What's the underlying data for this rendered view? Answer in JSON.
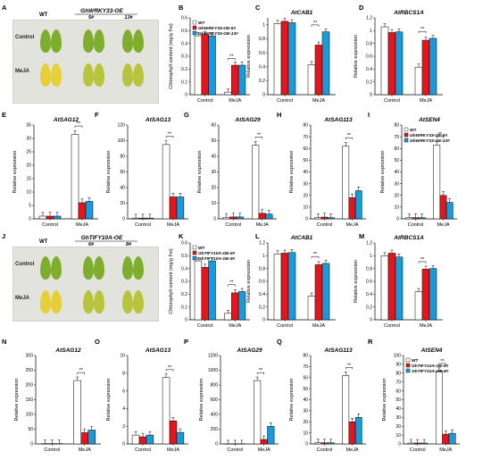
{
  "colors": {
    "wt": "#ffffff",
    "line1": "#e8141b",
    "line2": "#1a9ad9",
    "axis": "#000000",
    "leaf_green": "#7fae2e",
    "leaf_yellow": "#e7cf3a"
  },
  "photos": [
    {
      "letter": "A",
      "title_left": "WT",
      "title_right": "GhWRKY33-OE",
      "sub": [
        "5#",
        "13#"
      ],
      "rows": [
        "Control",
        "MeJA"
      ]
    },
    {
      "letter": "J",
      "title_left": "WT",
      "title_right": "GhTIFY10A-OE",
      "sub": [
        "6#",
        "8#"
      ],
      "rows": [
        "Control",
        "MeJA"
      ]
    }
  ],
  "chart_data": [
    {
      "panel": "B",
      "type": "bar",
      "title": "",
      "ylabel": "Chlorophyll content (mg/g Fw)",
      "categories": [
        "Control",
        "MeJA"
      ],
      "ylim": [
        0,
        0.6
      ],
      "ticks": [
        0,
        0.1,
        0.2,
        0.3,
        0.4,
        0.5,
        0.6
      ],
      "legend": [
        "WT",
        "GhWRKY33-OE-5#",
        "GhWRKY33-OE-13#"
      ],
      "legend_position": "top-left",
      "series": [
        {
          "name": "WT",
          "values": [
            0.46,
            0.02
          ]
        },
        {
          "name": "GhWRKY33-OE-5#",
          "values": [
            0.47,
            0.23
          ]
        },
        {
          "name": "GhWRKY33-OE-13#",
          "values": [
            0.46,
            0.23
          ]
        }
      ],
      "sig": [
        {
          "cat": 1,
          "label": "**"
        }
      ]
    },
    {
      "panel": "C",
      "type": "bar",
      "title": "AtCAB1",
      "ylabel": "Relative expression",
      "categories": [
        "Control",
        "MeJA"
      ],
      "ylim": [
        0,
        1.1
      ],
      "ticks": [
        0,
        0.2,
        0.4,
        0.6,
        0.8,
        1
      ],
      "series": [
        {
          "name": "WT",
          "values": [
            1.02,
            0.43
          ]
        },
        {
          "name": "GhWRKY33-OE-5#",
          "values": [
            1.05,
            0.71
          ]
        },
        {
          "name": "GhWRKY33-OE-13#",
          "values": [
            1.03,
            0.9
          ]
        }
      ],
      "sig": [
        {
          "cat": 1,
          "label": "**"
        }
      ]
    },
    {
      "panel": "D",
      "type": "bar",
      "title": "AtRBCS1A",
      "ylabel": "Relative expression",
      "categories": [
        "Control",
        "MeJA"
      ],
      "ylim": [
        0,
        1.2
      ],
      "ticks": [
        0,
        0.2,
        0.4,
        0.6,
        0.8,
        1,
        1.2
      ],
      "series": [
        {
          "name": "WT",
          "values": [
            1.06,
            0.43
          ]
        },
        {
          "name": "GhWRKY33-OE-5#",
          "values": [
            0.97,
            0.85
          ]
        },
        {
          "name": "GhWRKY33-OE-13#",
          "values": [
            0.98,
            0.88
          ]
        }
      ],
      "sig": [
        {
          "cat": 1,
          "label": "**"
        }
      ]
    },
    {
      "panel": "E",
      "type": "bar",
      "title": "AtSAG12",
      "ylabel": "Relative expression",
      "categories": [
        "Control",
        "MeJA"
      ],
      "ylim": [
        0,
        35
      ],
      "ticks": [
        0,
        5,
        10,
        15,
        20,
        25,
        30,
        35
      ],
      "series": [
        {
          "name": "WT",
          "values": [
            1,
            31.5
          ]
        },
        {
          "name": "GhWRKY33-OE-5#",
          "values": [
            1,
            6
          ]
        },
        {
          "name": "GhWRKY33-OE-13#",
          "values": [
            1,
            6.5
          ]
        }
      ],
      "sig": [
        {
          "cat": 1,
          "label": "**"
        }
      ]
    },
    {
      "panel": "F",
      "type": "bar",
      "title": "AtSAG13",
      "ylabel": "Relative expression",
      "categories": [
        "Control",
        "MeJA"
      ],
      "ylim": [
        0,
        120
      ],
      "ticks": [
        0,
        20,
        40,
        60,
        80,
        100,
        120
      ],
      "series": [
        {
          "name": "WT",
          "values": [
            1,
            95
          ]
        },
        {
          "name": "GhWRKY33-OE-5#",
          "values": [
            1,
            28
          ]
        },
        {
          "name": "GhWRKY33-OE-13#",
          "values": [
            1,
            28
          ]
        }
      ],
      "sig": [
        {
          "cat": 1,
          "label": "**"
        }
      ]
    },
    {
      "panel": "G",
      "type": "bar",
      "title": "AtSAG29",
      "ylabel": "Relative expression",
      "categories": [
        "Control",
        "MeJA"
      ],
      "ylim": [
        0,
        60
      ],
      "ticks": [
        0,
        10,
        20,
        30,
        40,
        50,
        60
      ],
      "series": [
        {
          "name": "WT",
          "values": [
            1,
            47
          ]
        },
        {
          "name": "GhWRKY33-OE-5#",
          "values": [
            1.2,
            3.5
          ]
        },
        {
          "name": "GhWRKY33-OE-13#",
          "values": [
            1.2,
            3
          ]
        }
      ],
      "sig": [
        {
          "cat": 1,
          "label": "**"
        }
      ]
    },
    {
      "panel": "H",
      "type": "bar",
      "title": "AtSAG113",
      "ylabel": "Relative expression",
      "categories": [
        "Control",
        "MeJA"
      ],
      "ylim": [
        0,
        80
      ],
      "ticks": [
        0,
        10,
        20,
        30,
        40,
        50,
        60,
        70,
        80
      ],
      "series": [
        {
          "name": "WT",
          "values": [
            1,
            62
          ]
        },
        {
          "name": "GhWRKY33-OE-5#",
          "values": [
            1.5,
            18
          ]
        },
        {
          "name": "GhWRKY33-OE-13#",
          "values": [
            1,
            24
          ]
        }
      ],
      "sig": [
        {
          "cat": 1,
          "label": "**"
        }
      ]
    },
    {
      "panel": "I",
      "type": "bar",
      "title": "AtSEN4",
      "ylabel": "Relative expression",
      "categories": [
        "Control",
        "MeJA"
      ],
      "ylim": [
        0,
        80
      ],
      "ticks": [
        0,
        10,
        20,
        30,
        40,
        50,
        60,
        70,
        80
      ],
      "legend": [
        "WT",
        "GhWRKY33-OE-5#",
        "GhWRKY33-OE-13#"
      ],
      "legend_position": "top-left",
      "series": [
        {
          "name": "WT",
          "values": [
            1,
            63
          ]
        },
        {
          "name": "GhWRKY33-OE-5#",
          "values": [
            1,
            20
          ]
        },
        {
          "name": "GhWRKY33-OE-13#",
          "values": [
            1,
            14
          ]
        }
      ],
      "sig": [
        {
          "cat": 1,
          "label": "**"
        }
      ]
    },
    {
      "panel": "K",
      "type": "bar",
      "title": "",
      "ylabel": "Chlorophyll content (mg/g Fw)",
      "categories": [
        "Control",
        "MeJA"
      ],
      "ylim": [
        0,
        0.6
      ],
      "ticks": [
        0,
        0.1,
        0.2,
        0.3,
        0.4,
        0.5,
        0.6
      ],
      "legend": [
        "WT",
        "GhTIFY10A-OE-6#",
        "GhTIFY10A-OE-8#"
      ],
      "legend_position": "top-left",
      "series": [
        {
          "name": "WT",
          "values": [
            0.46,
            0.05
          ]
        },
        {
          "name": "GhTIFY10A-OE-6#",
          "values": [
            0.41,
            0.21
          ]
        },
        {
          "name": "GhTIFY10A-OE-8#",
          "values": [
            0.46,
            0.22
          ]
        }
      ],
      "sig": [
        {
          "cat": 1,
          "label": "**"
        }
      ]
    },
    {
      "panel": "L",
      "type": "bar",
      "title": "AtCAB1",
      "ylabel": "Relative expression",
      "categories": [
        "Control",
        "MeJA"
      ],
      "ylim": [
        0,
        1.2
      ],
      "ticks": [
        0,
        0.2,
        0.4,
        0.6,
        0.8,
        1,
        1.2
      ],
      "series": [
        {
          "name": "WT",
          "values": [
            1.03,
            0.37
          ]
        },
        {
          "name": "GhTIFY10A-OE-6#",
          "values": [
            1.04,
            0.86
          ]
        },
        {
          "name": "GhTIFY10A-OE-8#",
          "values": [
            1.05,
            0.88
          ]
        }
      ],
      "sig": [
        {
          "cat": 1,
          "label": "**"
        }
      ]
    },
    {
      "panel": "M",
      "type": "bar",
      "title": "AtRBCS1A",
      "ylabel": "Relative expression",
      "categories": [
        "Control",
        "MeJA"
      ],
      "ylim": [
        0,
        1.2
      ],
      "ticks": [
        0,
        0.2,
        0.4,
        0.6,
        0.8,
        1,
        1.2
      ],
      "series": [
        {
          "name": "WT",
          "values": [
            1,
            0.44
          ]
        },
        {
          "name": "GhTIFY10A-OE-6#",
          "values": [
            1.04,
            0.79
          ]
        },
        {
          "name": "GhTIFY10A-OE-8#",
          "values": [
            0.98,
            0.8
          ]
        }
      ],
      "sig": [
        {
          "cat": 1,
          "label": "**"
        }
      ]
    },
    {
      "panel": "N",
      "type": "bar",
      "title": "AtSAG12",
      "ylabel": "Relative expression",
      "categories": [
        "Control",
        "MeJA"
      ],
      "ylim": [
        0,
        300
      ],
      "ticks": [
        0,
        50,
        100,
        150,
        200,
        250,
        300
      ],
      "series": [
        {
          "name": "WT",
          "values": [
            1,
            215
          ]
        },
        {
          "name": "GhTIFY10A-OE-6#",
          "values": [
            1,
            38
          ]
        },
        {
          "name": "GhTIFY10A-OE-8#",
          "values": [
            1,
            47
          ]
        }
      ],
      "sig": [
        {
          "cat": 1,
          "label": "**"
        }
      ]
    },
    {
      "panel": "O",
      "type": "bar",
      "title": "AtSAG13",
      "ylabel": "Relative expression",
      "categories": [
        "Control",
        "MeJA"
      ],
      "ylim": [
        0,
        10
      ],
      "ticks": [
        0,
        2,
        4,
        6,
        8,
        10
      ],
      "series": [
        {
          "name": "WT",
          "values": [
            1,
            7.5
          ]
        },
        {
          "name": "GhTIFY10A-OE-6#",
          "values": [
            0.8,
            2.6
          ]
        },
        {
          "name": "GhTIFY10A-OE-8#",
          "values": [
            1,
            1.3
          ]
        }
      ],
      "sig": [
        {
          "cat": 1,
          "label": "**"
        }
      ]
    },
    {
      "panel": "P",
      "type": "bar",
      "title": "AtSAG29",
      "ylabel": "Relative expression",
      "categories": [
        "Control",
        "MeJA"
      ],
      "ylim": [
        0,
        1200
      ],
      "ticks": [
        0,
        200,
        400,
        600,
        800,
        1000,
        1200
      ],
      "series": [
        {
          "name": "WT",
          "values": [
            1,
            860
          ]
        },
        {
          "name": "GhTIFY10A-OE-6#",
          "values": [
            1,
            60
          ]
        },
        {
          "name": "GhTIFY10A-OE-8#",
          "values": [
            1,
            240
          ]
        }
      ],
      "sig": [
        {
          "cat": 1,
          "label": "**"
        }
      ]
    },
    {
      "panel": "Q",
      "type": "bar",
      "title": "AtSAG113",
      "ylabel": "Relative expression",
      "categories": [
        "Control",
        "MeJA"
      ],
      "ylim": [
        0,
        80
      ],
      "ticks": [
        0,
        10,
        20,
        30,
        40,
        50,
        60,
        70,
        80
      ],
      "series": [
        {
          "name": "WT",
          "values": [
            1,
            62
          ]
        },
        {
          "name": "GhTIFY10A-OE-6#",
          "values": [
            1,
            20
          ]
        },
        {
          "name": "GhTIFY10A-OE-8#",
          "values": [
            1,
            24
          ]
        }
      ],
      "sig": [
        {
          "cat": 1,
          "label": "**"
        }
      ]
    },
    {
      "panel": "R",
      "type": "bar",
      "title": "AtSEN4",
      "ylabel": "Relative expression",
      "categories": [
        "Control",
        "MeJA"
      ],
      "ylim": [
        0,
        100
      ],
      "ticks": [
        0,
        10,
        20,
        30,
        40,
        50,
        60,
        70,
        80,
        90,
        100
      ],
      "legend": [
        "WT",
        "GhTIFY10A-OE-6#",
        "GhTIFY10A-OE-8#"
      ],
      "legend_position": "top-left",
      "series": [
        {
          "name": "WT",
          "values": [
            1,
            82
          ]
        },
        {
          "name": "GhTIFY10A-OE-6#",
          "values": [
            1,
            11
          ]
        },
        {
          "name": "GhTIFY10A-OE-8#",
          "values": [
            1,
            12
          ]
        }
      ],
      "sig": [
        {
          "cat": 1,
          "label": "**"
        }
      ]
    }
  ]
}
